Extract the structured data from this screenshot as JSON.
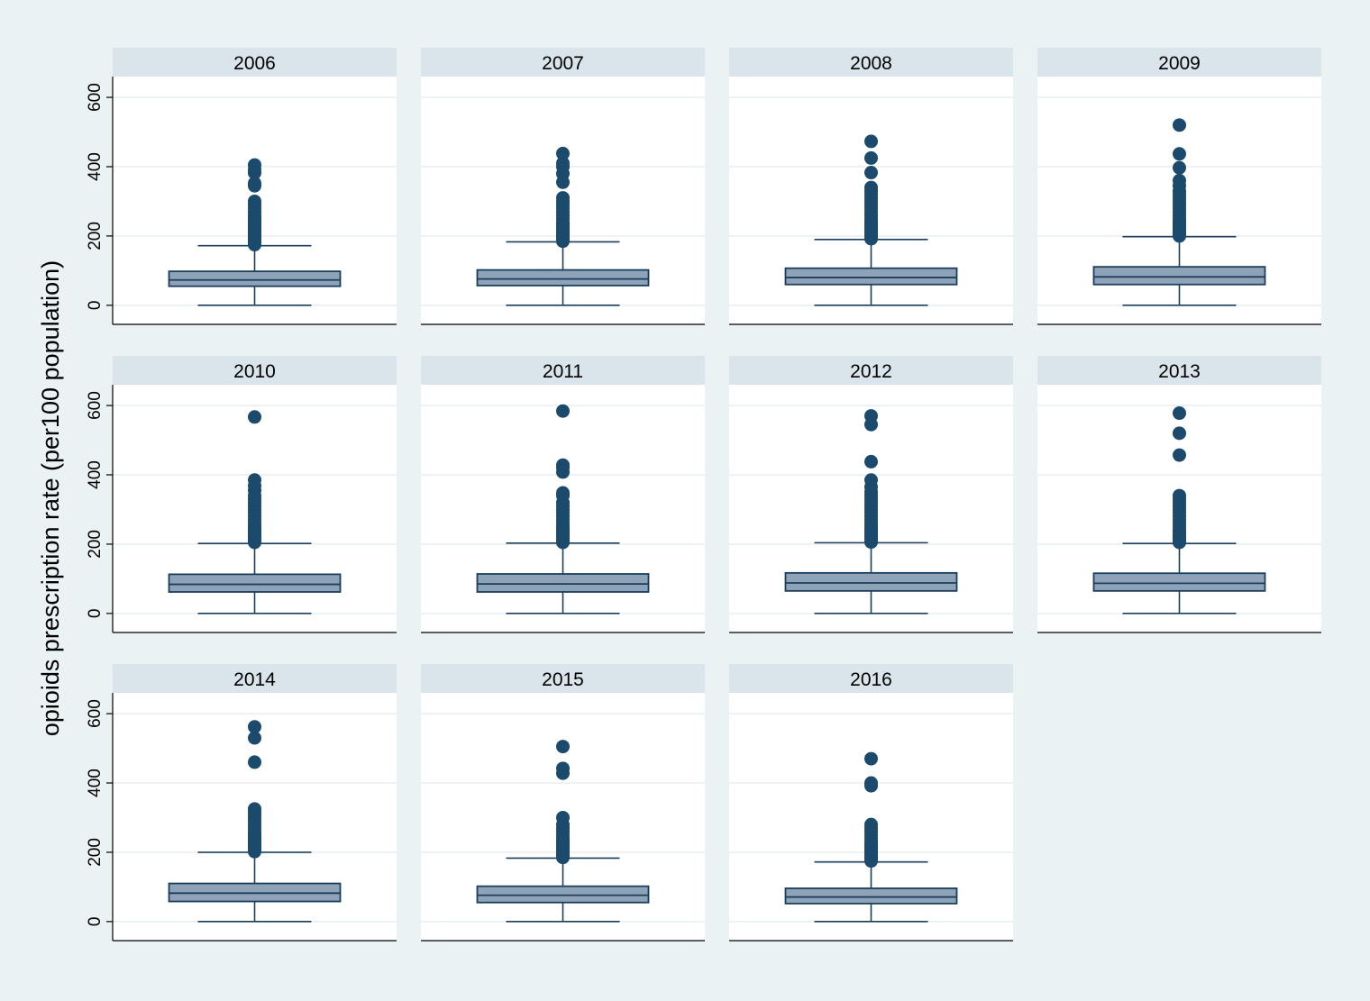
{
  "chart_data": {
    "type": "box",
    "ylabel": "opioids prescription rate (per100 population)",
    "ylim": [
      -55,
      660
    ],
    "yticks": [
      0,
      200,
      400,
      600
    ],
    "grid": true,
    "colors": {
      "box_fill": "#8ea3b8",
      "box_stroke": "#1b3e5c",
      "outlier": "#1b4a6d",
      "strip": "#d9e5eb",
      "plot_bg": "#ffffff",
      "page_bg": "#eaf2f3"
    },
    "panels": [
      {
        "label": "2006",
        "min": 0,
        "q1": 55,
        "median": 73,
        "q3": 98,
        "whisker_high": 172,
        "outliers": [
          175,
          180,
          185,
          190,
          195,
          200,
          205,
          210,
          215,
          220,
          225,
          230,
          235,
          240,
          245,
          250,
          255,
          260,
          270,
          280,
          290,
          300,
          345,
          352,
          382,
          392,
          405
        ]
      },
      {
        "label": "2007",
        "min": 0,
        "q1": 57,
        "median": 76,
        "q3": 102,
        "whisker_high": 183,
        "outliers": [
          185,
          190,
          195,
          200,
          205,
          210,
          215,
          220,
          225,
          230,
          235,
          240,
          250,
          260,
          270,
          280,
          290,
          300,
          310,
          355,
          380,
          400,
          410,
          438
        ]
      },
      {
        "label": "2008",
        "min": 0,
        "q1": 60,
        "median": 80,
        "q3": 107,
        "whisker_high": 190,
        "outliers": [
          192,
          197,
          202,
          207,
          212,
          217,
          222,
          227,
          232,
          237,
          242,
          250,
          260,
          270,
          280,
          290,
          300,
          310,
          320,
          330,
          340,
          383,
          425,
          473
        ]
      },
      {
        "label": "2009",
        "min": 0,
        "q1": 60,
        "median": 82,
        "q3": 111,
        "whisker_high": 198,
        "outliers": [
          200,
          205,
          210,
          215,
          220,
          225,
          230,
          235,
          240,
          245,
          250,
          260,
          270,
          280,
          290,
          300,
          310,
          320,
          330,
          345,
          360,
          397,
          437,
          520
        ]
      },
      {
        "label": "2010",
        "min": 0,
        "q1": 62,
        "median": 84,
        "q3": 113,
        "whisker_high": 202,
        "outliers": [
          205,
          210,
          215,
          220,
          225,
          230,
          235,
          240,
          245,
          250,
          260,
          270,
          280,
          290,
          300,
          310,
          320,
          330,
          340,
          355,
          368,
          385,
          567
        ]
      },
      {
        "label": "2011",
        "min": 0,
        "q1": 62,
        "median": 85,
        "q3": 114,
        "whisker_high": 203,
        "outliers": [
          205,
          210,
          215,
          220,
          225,
          230,
          235,
          240,
          245,
          250,
          260,
          270,
          280,
          290,
          300,
          310,
          320,
          340,
          348,
          408,
          420,
          428,
          584
        ]
      },
      {
        "label": "2012",
        "min": 0,
        "q1": 65,
        "median": 88,
        "q3": 117,
        "whisker_high": 204,
        "outliers": [
          206,
          211,
          216,
          221,
          226,
          231,
          236,
          241,
          246,
          251,
          260,
          270,
          280,
          290,
          300,
          310,
          320,
          330,
          340,
          350,
          365,
          385,
          438,
          545,
          570
        ]
      },
      {
        "label": "2013",
        "min": 0,
        "q1": 65,
        "median": 87,
        "q3": 116,
        "whisker_high": 202,
        "outliers": [
          205,
          210,
          215,
          220,
          225,
          230,
          235,
          240,
          250,
          260,
          270,
          280,
          290,
          300,
          310,
          320,
          330,
          340,
          457,
          520,
          578
        ]
      },
      {
        "label": "2014",
        "min": 0,
        "q1": 58,
        "median": 82,
        "q3": 110,
        "whisker_high": 200,
        "outliers": [
          202,
          207,
          212,
          217,
          222,
          227,
          232,
          237,
          242,
          247,
          252,
          260,
          270,
          280,
          290,
          300,
          310,
          320,
          325,
          460,
          530,
          562
        ]
      },
      {
        "label": "2015",
        "min": 0,
        "q1": 55,
        "median": 76,
        "q3": 102,
        "whisker_high": 183,
        "outliers": [
          185,
          190,
          195,
          200,
          205,
          210,
          215,
          220,
          225,
          230,
          235,
          240,
          250,
          260,
          270,
          280,
          300,
          428,
          442,
          505
        ]
      },
      {
        "label": "2016",
        "min": 0,
        "q1": 52,
        "median": 71,
        "q3": 96,
        "whisker_high": 172,
        "outliers": [
          175,
          180,
          185,
          190,
          195,
          200,
          205,
          210,
          215,
          220,
          225,
          230,
          240,
          250,
          260,
          270,
          280,
          392,
          400,
          470
        ]
      }
    ]
  }
}
